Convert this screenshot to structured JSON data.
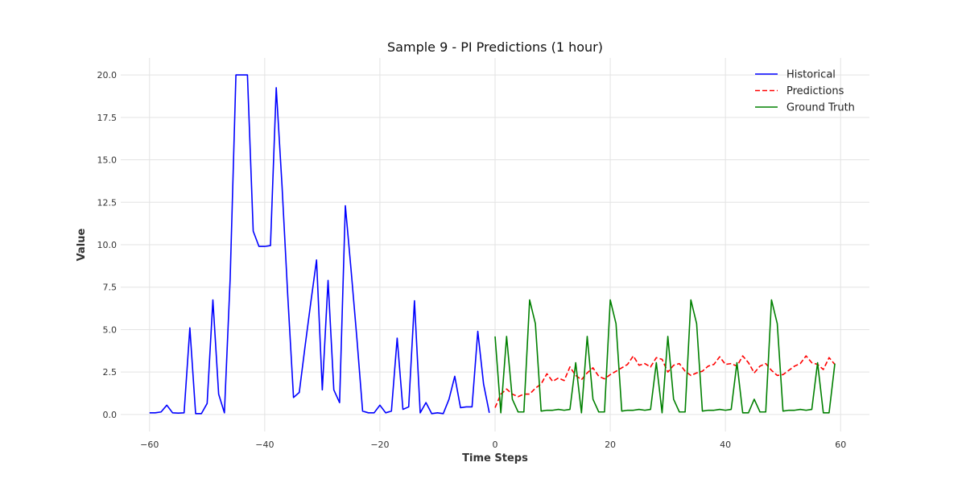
{
  "chart_data": {
    "type": "line",
    "title": "Sample 9 - PI Predictions (1 hour)",
    "xlabel": "Time Steps",
    "ylabel": "Value",
    "xlim": [
      -65,
      65
    ],
    "ylim": [
      -1.0,
      21.0
    ],
    "xticks": [
      -60,
      -40,
      -20,
      0,
      20,
      40,
      60
    ],
    "xtick_labels": [
      "−60",
      "−40",
      "−20",
      "0",
      "20",
      "40",
      "60"
    ],
    "yticks": [
      0.0,
      2.5,
      5.0,
      7.5,
      10.0,
      12.5,
      15.0,
      17.5,
      20.0
    ],
    "ytick_labels": [
      "0.0",
      "2.5",
      "5.0",
      "7.5",
      "10.0",
      "12.5",
      "15.0",
      "17.5",
      "20.0"
    ],
    "grid": true,
    "legend_position": "top-right",
    "series": [
      {
        "name": "Historical",
        "color": "#0000ff",
        "style": "solid",
        "x_start": -60,
        "values": [
          0.1,
          0.1,
          0.15,
          0.55,
          0.1,
          0.08,
          0.1,
          5.1,
          0.05,
          0.05,
          0.65,
          6.75,
          1.2,
          0.1,
          8.0,
          20.0,
          20.0,
          20.0,
          10.8,
          9.9,
          9.9,
          9.95,
          19.25,
          13.5,
          7.0,
          1.0,
          1.3,
          4.0,
          6.6,
          9.1,
          1.45,
          7.9,
          1.45,
          0.7,
          12.3,
          8.5,
          4.5,
          0.2,
          0.1,
          0.1,
          0.55,
          0.1,
          0.2,
          4.5,
          0.3,
          0.45,
          6.7,
          0.1,
          0.7,
          0.05,
          0.1,
          0.05,
          0.9,
          2.25,
          0.4,
          0.45,
          0.45,
          4.9,
          1.8,
          0.1
        ]
      },
      {
        "name": "Predictions",
        "color": "#ff0000",
        "style": "dashed",
        "x_start": 0,
        "values": [
          0.4,
          1.2,
          1.5,
          1.2,
          1.05,
          1.2,
          1.2,
          1.55,
          1.8,
          2.4,
          1.95,
          2.15,
          2.0,
          2.8,
          2.3,
          2.05,
          2.45,
          2.75,
          2.25,
          2.1,
          2.35,
          2.55,
          2.75,
          2.95,
          3.45,
          2.9,
          3.0,
          2.8,
          3.35,
          3.25,
          2.5,
          2.9,
          3.0,
          2.55,
          2.3,
          2.45,
          2.55,
          2.85,
          2.95,
          3.4,
          2.95,
          3.0,
          2.85,
          3.45,
          3.05,
          2.45,
          2.85,
          3.0,
          2.6,
          2.3,
          2.35,
          2.6,
          2.85,
          3.0,
          3.45,
          3.05,
          2.95,
          2.65,
          3.35,
          2.95
        ]
      },
      {
        "name": "Ground Truth",
        "color": "#008000",
        "style": "solid",
        "x_start": 0,
        "values": [
          4.6,
          0.1,
          4.6,
          0.9,
          0.15,
          0.15,
          6.75,
          5.35,
          0.2,
          0.25,
          0.25,
          0.3,
          0.25,
          0.3,
          3.05,
          0.1,
          4.6,
          0.9,
          0.15,
          0.15,
          6.75,
          5.35,
          0.2,
          0.25,
          0.25,
          0.3,
          0.25,
          0.3,
          3.05,
          0.1,
          4.6,
          0.9,
          0.15,
          0.15,
          6.75,
          5.35,
          0.2,
          0.25,
          0.25,
          0.3,
          0.25,
          0.3,
          3.05,
          0.1,
          0.1,
          0.9,
          0.15,
          0.15,
          6.75,
          5.35,
          0.2,
          0.25,
          0.25,
          0.3,
          0.25,
          0.3,
          3.05,
          0.1,
          0.1,
          3.0
        ]
      }
    ]
  }
}
